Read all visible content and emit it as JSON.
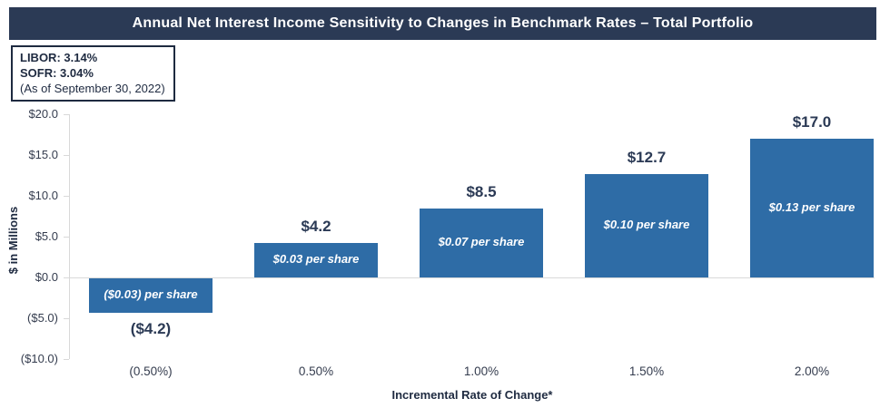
{
  "title": "Annual Net Interest Income Sensitivity to Changes in Benchmark Rates – Total Portfolio",
  "info_box": {
    "libor": "LIBOR: 3.14%",
    "sofr": "SOFR: 3.04%",
    "as_of": "(As of September 30, 2022)"
  },
  "colors": {
    "navy": "#2b3a55",
    "bar_blue": "#2e6ca6",
    "axis_gray": "#d9d9d9",
    "tick_text": "#343c4e"
  },
  "chart_data": {
    "type": "bar",
    "title": "Annual Net Interest Income Sensitivity to Changes in Benchmark Rates – Total Portfolio",
    "categories": [
      "(0.50%)",
      "0.50%",
      "1.00%",
      "1.50%",
      "2.00%"
    ],
    "values": [
      -4.2,
      4.2,
      8.5,
      12.7,
      17.0
    ],
    "value_labels": [
      "($4.2)",
      "$4.2",
      "$8.5",
      "$12.7",
      "$17.0"
    ],
    "bar_annotations": [
      "($0.03) per share",
      "$0.03 per share",
      "$0.07 per share",
      "$0.10 per share",
      "$0.13 per share"
    ],
    "xlabel": "Incremental Rate of Change*",
    "ylabel": "$ in Millions",
    "ylim": [
      -10,
      20
    ],
    "ytick_step": 5,
    "ytick_labels": [
      "$20.0",
      "$15.0",
      "$10.0",
      "$5.0",
      "$0.0",
      "($5.0)",
      "($10.0)"
    ],
    "grid": false,
    "legend": "none"
  }
}
